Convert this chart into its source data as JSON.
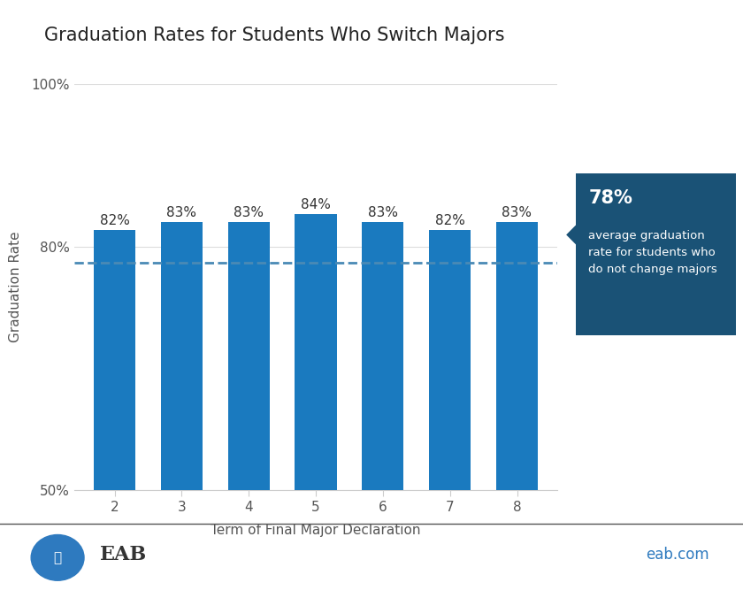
{
  "title": "Graduation Rates for Students Who Switch Majors",
  "categories": [
    "2",
    "3",
    "4",
    "5",
    "6",
    "7",
    "8"
  ],
  "values": [
    82,
    83,
    83,
    84,
    83,
    82,
    83
  ],
  "bar_color": "#1a7abf",
  "xlabel": "Term of Final Major Declaration",
  "ylabel": "Graduation Rate",
  "ylim_min": 50,
  "ylim_max": 100,
  "avg_line_value": 78,
  "avg_line_color": "#4a8ab5",
  "avg_label_pct": "78%",
  "avg_label_text": "average graduation\nrate for students who\ndo not change majors",
  "tooltip_bg": "#1a5276",
  "tooltip_text_color": "#ffffff",
  "title_fontsize": 15,
  "axis_label_fontsize": 11,
  "tick_fontsize": 11,
  "bar_label_fontsize": 11,
  "eab_text_color": "#333333",
  "eab_circle_color": "#2e7abf",
  "eabcom_color": "#2e7abf",
  "grid_color": "#dddddd",
  "spine_color": "#cccccc"
}
